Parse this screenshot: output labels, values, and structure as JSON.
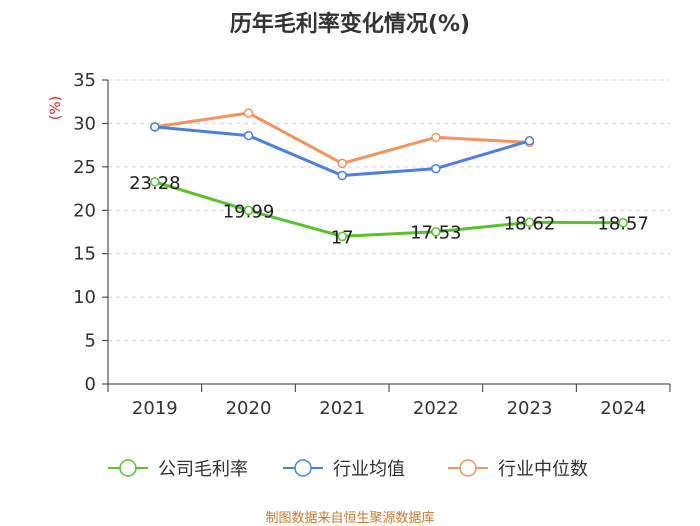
{
  "title": "历年毛利率变化情况(%)",
  "source": "制图数据来自恒生聚源数据库",
  "chart_data": {
    "type": "line",
    "title": "历年毛利率变化情况(%)",
    "ylabel": "(%)",
    "xlabel": "",
    "categories": [
      "2019",
      "2020",
      "2021",
      "2022",
      "2023",
      "2024"
    ],
    "ylim": [
      0,
      35
    ],
    "yticks": [
      0,
      5,
      10,
      15,
      20,
      25,
      30,
      35
    ],
    "grid": "horizontal-dashed",
    "legend_position": "bottom",
    "series": [
      {
        "name": "公司毛利率",
        "color": "#5ac22a",
        "values": [
          23.28,
          19.99,
          17,
          17.53,
          18.62,
          18.57
        ],
        "labels": [
          "23.28",
          "19.99",
          "17",
          "17.53",
          "18.62",
          "18.57"
        ]
      },
      {
        "name": "行业均值",
        "color": "#4c80dc",
        "values": [
          29.6,
          28.6,
          24.0,
          24.8,
          28.0,
          null
        ]
      },
      {
        "name": "行业中位数",
        "color": "#f5935d",
        "values": [
          29.6,
          31.2,
          25.4,
          28.4,
          27.8,
          null
        ]
      }
    ]
  },
  "colors": {
    "axis": "#333333",
    "grid": "#d6d6d6",
    "ylabel": "#e02020",
    "source": "#c87a2a"
  }
}
